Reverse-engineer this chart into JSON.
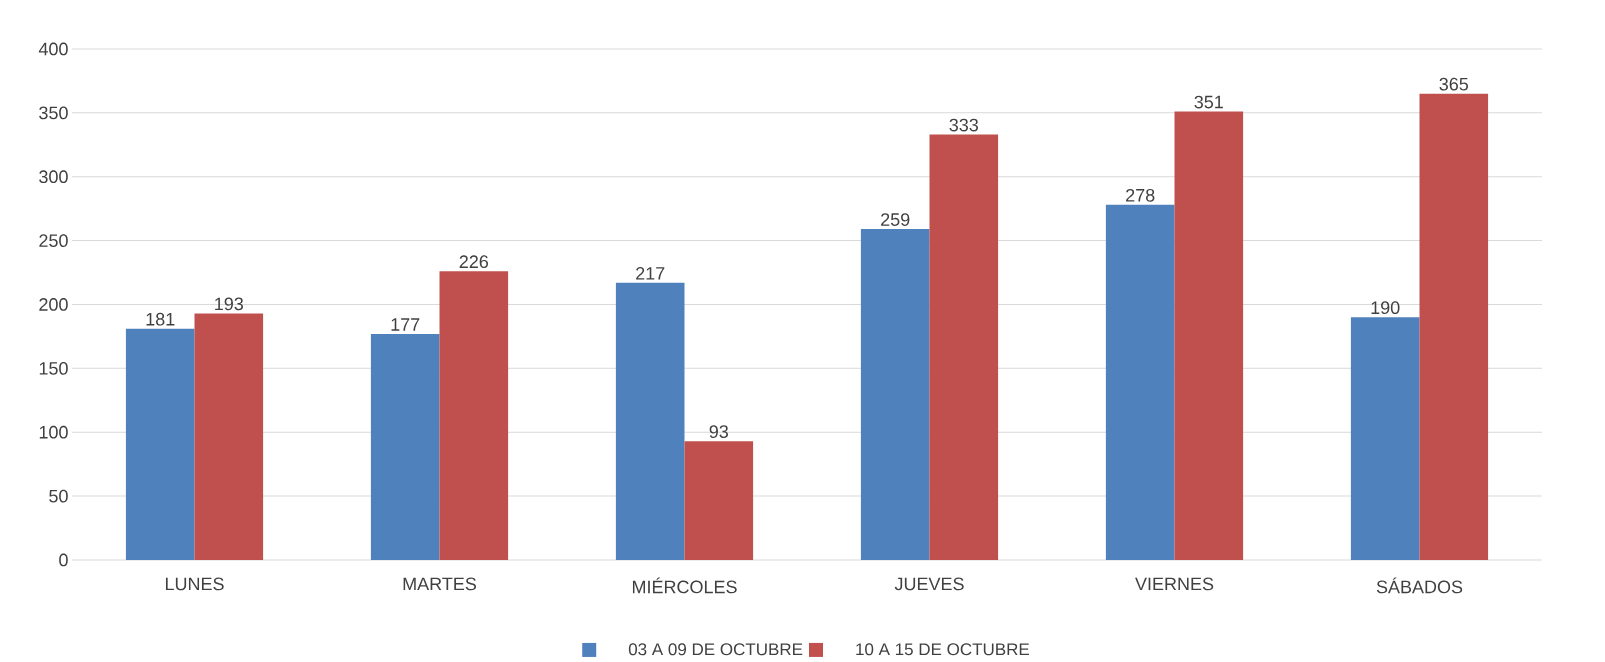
{
  "chart_data": {
    "type": "bar",
    "categories": [
      "LUNES",
      "MARTES",
      "MIÉRCOLES",
      "JUEVES",
      "VIERNES",
      "SÁBADOS"
    ],
    "series": [
      {
        "name": "03 A 09 DE OCTUBRE",
        "color": "#4f81bd",
        "values": [
          181,
          177,
          217,
          259,
          278,
          190
        ]
      },
      {
        "name": "10 A 15 DE OCTUBRE",
        "color": "#c0504d",
        "values": [
          193,
          226,
          93,
          333,
          351,
          365
        ]
      }
    ],
    "ylim": [
      0,
      400
    ],
    "yticks": [
      0,
      50,
      100,
      150,
      200,
      250,
      300,
      350,
      400
    ],
    "grid": "y",
    "legend": "bottom",
    "data_labels": true
  }
}
